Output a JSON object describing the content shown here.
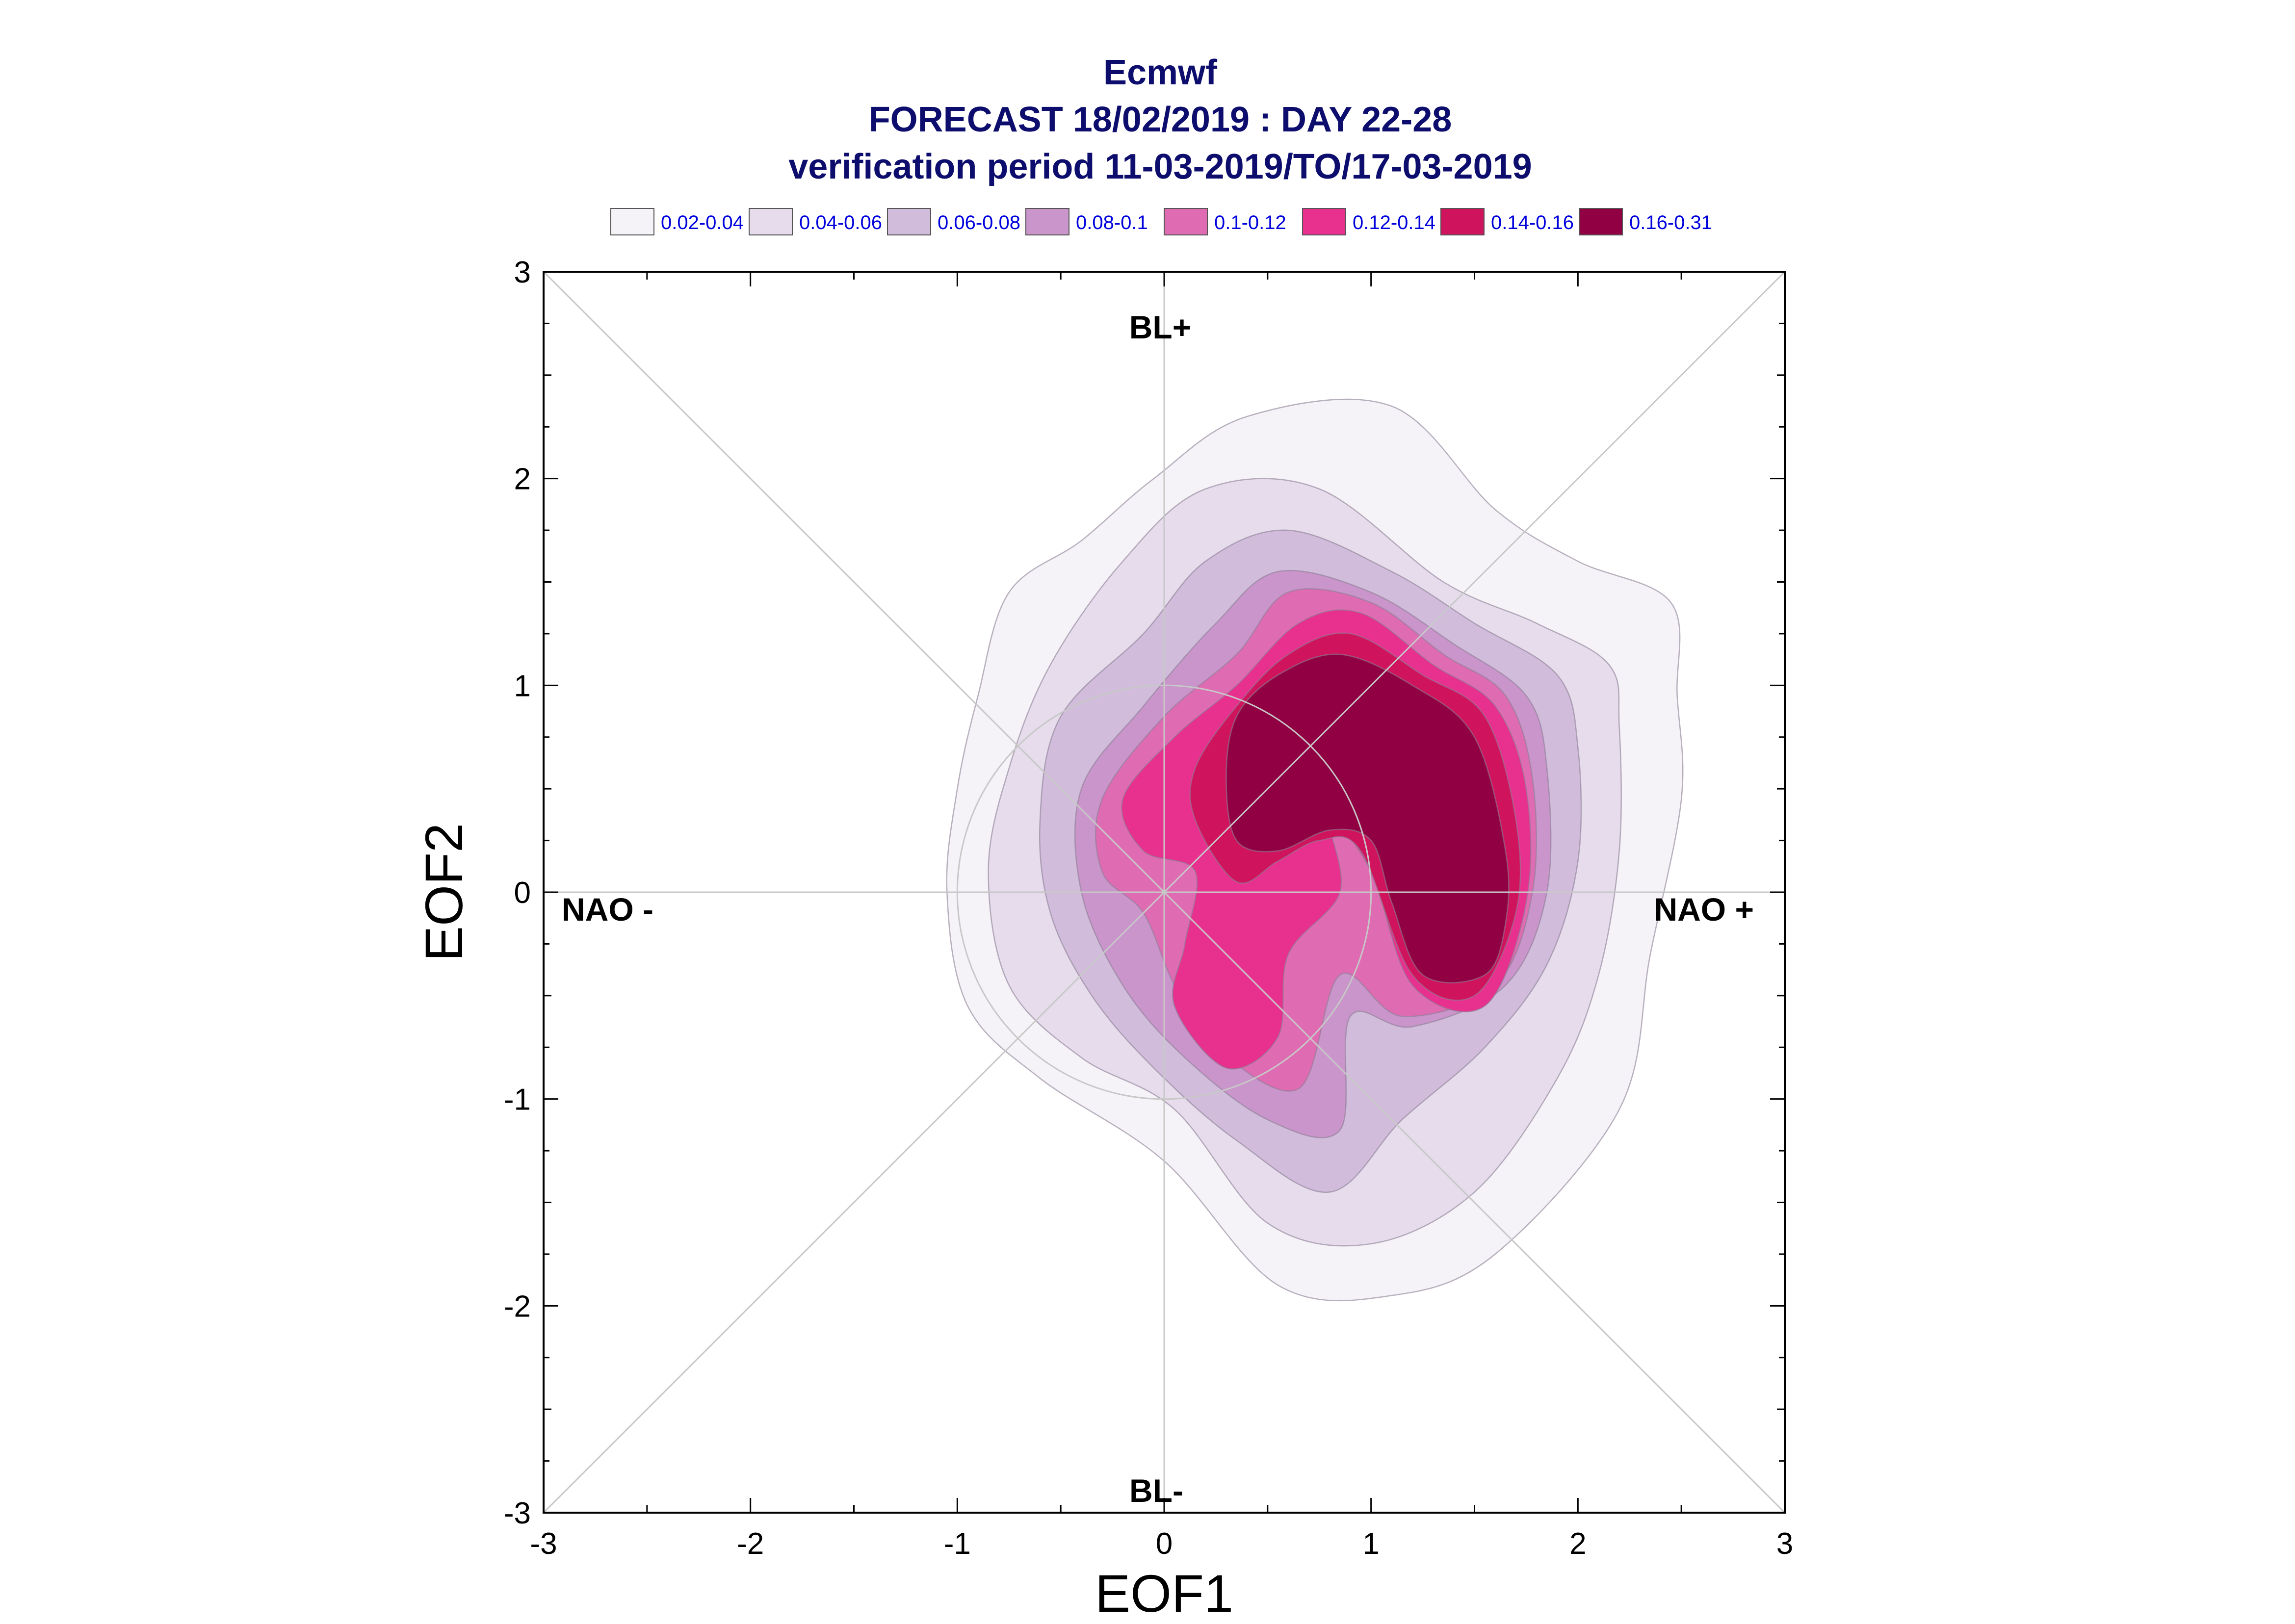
{
  "chart_data": {
    "type": "contour",
    "title": "Ecmwf",
    "subtitle": "FORECAST 18/02/2019 : DAY 22-28",
    "subtitle2": "verification period 11-03-2019/TO/17-03-2019",
    "xlabel": "EOF1",
    "ylabel": "EOF2",
    "xlim": [
      -3,
      3
    ],
    "ylim": [
      -3,
      3
    ],
    "xticks": [
      "-3",
      "-2",
      "-1",
      "0",
      "1",
      "2",
      "3"
    ],
    "yticks": [
      "-3",
      "-2",
      "-1",
      "0",
      "1",
      "2",
      "3"
    ],
    "grid": false,
    "legend_position": "top",
    "regime_labels": {
      "top": "BL+",
      "bottom": "BL-",
      "left": "NAO -",
      "right": "NAO +"
    },
    "levels": [
      {
        "label": "0.02-0.04",
        "color": "#f6f3f8"
      },
      {
        "label": "0.04-0.06",
        "color": "#e6dcec"
      },
      {
        "label": "0.06-0.08",
        "color": "#d2bcdc"
      },
      {
        "label": "0.08-0.1",
        "color": "#c995ca"
      },
      {
        "label": "0.1-0.12",
        "color": "#df6cb2"
      },
      {
        "label": "0.12-0.14",
        "color": "#e8308e"
      },
      {
        "label": "0.14-0.16",
        "color": "#cf135c"
      },
      {
        "label": "0.16-0.31",
        "color": "#900042"
      }
    ],
    "contours": [
      {
        "level": "0.02-0.04",
        "polygon": [
          [
            2.48,
            0.95
          ],
          [
            2.45,
            1.4
          ],
          [
            2.0,
            1.6
          ],
          [
            1.6,
            1.85
          ],
          [
            1.1,
            2.35
          ],
          [
            0.4,
            2.3
          ],
          [
            -0.05,
            2.0
          ],
          [
            -0.4,
            1.7
          ],
          [
            -0.75,
            1.45
          ],
          [
            -0.9,
            0.95
          ],
          [
            -1.0,
            0.5
          ],
          [
            -1.05,
            0.0
          ],
          [
            -0.95,
            -0.55
          ],
          [
            -0.6,
            -0.9
          ],
          [
            0.0,
            -1.3
          ],
          [
            0.55,
            -1.9
          ],
          [
            1.1,
            -1.95
          ],
          [
            1.6,
            -1.75
          ],
          [
            2.2,
            -1.05
          ],
          [
            2.35,
            -0.3
          ],
          [
            2.5,
            0.45
          ]
        ]
      },
      {
        "level": "0.04-0.06",
        "polygon": [
          [
            2.2,
            0.8
          ],
          [
            2.15,
            1.1
          ],
          [
            1.8,
            1.3
          ],
          [
            1.35,
            1.5
          ],
          [
            0.75,
            1.95
          ],
          [
            0.2,
            1.95
          ],
          [
            -0.2,
            1.6
          ],
          [
            -0.55,
            1.1
          ],
          [
            -0.75,
            0.6
          ],
          [
            -0.85,
            0.1
          ],
          [
            -0.75,
            -0.45
          ],
          [
            -0.4,
            -0.8
          ],
          [
            0.05,
            -1.05
          ],
          [
            0.5,
            -1.6
          ],
          [
            1.0,
            -1.7
          ],
          [
            1.5,
            -1.45
          ],
          [
            1.9,
            -0.9
          ],
          [
            2.1,
            -0.4
          ],
          [
            2.2,
            0.2
          ]
        ]
      },
      {
        "level": "0.06-0.08",
        "polygon": [
          [
            2.0,
            0.7
          ],
          [
            1.9,
            1.05
          ],
          [
            1.5,
            1.3
          ],
          [
            1.1,
            1.55
          ],
          [
            0.6,
            1.75
          ],
          [
            0.2,
            1.6
          ],
          [
            -0.1,
            1.25
          ],
          [
            -0.5,
            0.85
          ],
          [
            -0.6,
            0.35
          ],
          [
            -0.55,
            -0.1
          ],
          [
            -0.35,
            -0.5
          ],
          [
            -0.05,
            -0.85
          ],
          [
            0.35,
            -1.2
          ],
          [
            0.8,
            -1.45
          ],
          [
            1.15,
            -1.1
          ],
          [
            1.55,
            -0.75
          ],
          [
            1.85,
            -0.35
          ],
          [
            2.0,
            0.15
          ]
        ]
      },
      {
        "level": "0.08-0.1",
        "polygon": [
          [
            1.85,
            0.6
          ],
          [
            1.75,
            0.95
          ],
          [
            1.4,
            1.2
          ],
          [
            1.0,
            1.45
          ],
          [
            0.55,
            1.55
          ],
          [
            0.25,
            1.3
          ],
          [
            -0.1,
            0.9
          ],
          [
            -0.4,
            0.5
          ],
          [
            -0.4,
            0.0
          ],
          [
            -0.2,
            -0.45
          ],
          [
            0.1,
            -0.8
          ],
          [
            0.5,
            -1.1
          ],
          [
            0.85,
            -1.15
          ],
          [
            0.9,
            -0.6
          ],
          [
            1.2,
            -0.65
          ],
          [
            1.65,
            -0.45
          ],
          [
            1.85,
            0.0
          ]
        ]
      },
      {
        "level": "0.1-0.12",
        "polygon": [
          [
            1.78,
            0.55
          ],
          [
            1.65,
            0.95
          ],
          [
            1.35,
            1.15
          ],
          [
            1.0,
            1.4
          ],
          [
            0.6,
            1.45
          ],
          [
            0.35,
            1.15
          ],
          [
            0.0,
            0.85
          ],
          [
            -0.3,
            0.45
          ],
          [
            -0.3,
            0.1
          ],
          [
            -0.1,
            -0.1
          ],
          [
            0.05,
            -0.45
          ],
          [
            0.25,
            -0.75
          ],
          [
            0.65,
            -0.95
          ],
          [
            0.85,
            -0.4
          ],
          [
            1.15,
            -0.6
          ],
          [
            1.6,
            -0.45
          ],
          [
            1.78,
            0.0
          ]
        ]
      },
      {
        "level": "0.12-0.14",
        "polygon": [
          [
            1.75,
            0.5
          ],
          [
            1.6,
            0.9
          ],
          [
            1.3,
            1.1
          ],
          [
            0.95,
            1.35
          ],
          [
            0.65,
            1.3
          ],
          [
            0.35,
            1.0
          ],
          [
            0.05,
            0.75
          ],
          [
            -0.2,
            0.45
          ],
          [
            -0.1,
            0.2
          ],
          [
            0.15,
            0.1
          ],
          [
            0.1,
            -0.25
          ],
          [
            0.05,
            -0.55
          ],
          [
            0.3,
            -0.85
          ],
          [
            0.55,
            -0.7
          ],
          [
            0.6,
            -0.3
          ],
          [
            0.85,
            0.0
          ],
          [
            0.8,
            0.35
          ],
          [
            1.0,
            0.1
          ],
          [
            1.2,
            -0.45
          ],
          [
            1.55,
            -0.55
          ],
          [
            1.75,
            -0.05
          ]
        ]
      },
      {
        "level": "0.14-0.16",
        "polygon": [
          [
            1.7,
            0.35
          ],
          [
            1.55,
            0.85
          ],
          [
            1.25,
            1.05
          ],
          [
            0.9,
            1.25
          ],
          [
            0.6,
            1.15
          ],
          [
            0.35,
            0.9
          ],
          [
            0.15,
            0.6
          ],
          [
            0.15,
            0.35
          ],
          [
            0.35,
            0.05
          ],
          [
            0.55,
            0.15
          ],
          [
            0.75,
            0.25
          ],
          [
            0.95,
            0.2
          ],
          [
            1.2,
            -0.4
          ],
          [
            1.5,
            -0.5
          ],
          [
            1.7,
            -0.1
          ]
        ]
      },
      {
        "level": "0.16-0.31",
        "polygon": [
          [
            1.65,
            0.2
          ],
          [
            1.5,
            0.75
          ],
          [
            1.2,
            1.0
          ],
          [
            0.85,
            1.15
          ],
          [
            0.55,
            1.05
          ],
          [
            0.35,
            0.85
          ],
          [
            0.3,
            0.55
          ],
          [
            0.35,
            0.25
          ],
          [
            0.55,
            0.2
          ],
          [
            0.8,
            0.3
          ],
          [
            1.0,
            0.25
          ],
          [
            1.1,
            -0.05
          ],
          [
            1.25,
            -0.4
          ],
          [
            1.55,
            -0.4
          ],
          [
            1.65,
            -0.15
          ]
        ]
      }
    ]
  }
}
